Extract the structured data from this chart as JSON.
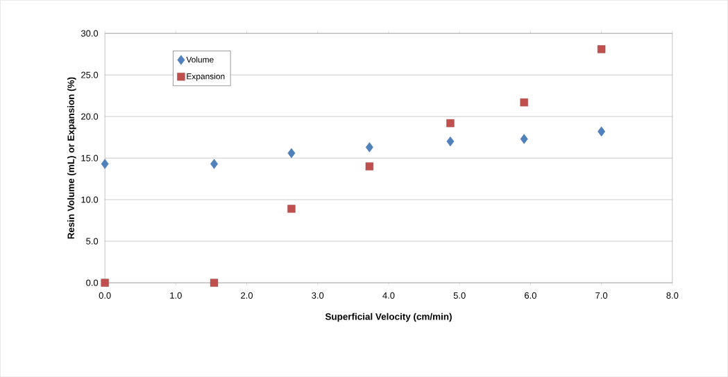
{
  "chart_data": {
    "type": "scatter",
    "xlabel": "Superficial Velocity (cm/min)",
    "ylabel": "Resin Volume (mL) or Expansion (%)",
    "x": [
      0.0,
      1.54,
      2.63,
      3.73,
      4.87,
      5.91,
      7.0
    ],
    "series": [
      {
        "name": "Volume",
        "color": "#4f81bd",
        "marker": "diamond",
        "values": [
          14.3,
          14.3,
          15.6,
          16.3,
          17.0,
          17.3,
          18.2
        ]
      },
      {
        "name": "Expansion",
        "color": "#c0504d",
        "marker": "square",
        "values": [
          0.0,
          0.0,
          8.9,
          14.0,
          19.2,
          21.7,
          28.1
        ]
      }
    ],
    "xlim": [
      0,
      8
    ],
    "ylim": [
      0,
      30
    ],
    "xticks": [
      {
        "value": 0,
        "label": "0.0"
      },
      {
        "value": 1,
        "label": "1.0"
      },
      {
        "value": 2,
        "label": "2.0"
      },
      {
        "value": 3,
        "label": "3.0"
      },
      {
        "value": 4,
        "label": "4.0"
      },
      {
        "value": 5,
        "label": "5.0"
      },
      {
        "value": 6,
        "label": "6.0"
      },
      {
        "value": 7,
        "label": "7.0"
      },
      {
        "value": 8,
        "label": "8.0"
      }
    ],
    "yticks": [
      {
        "value": 0,
        "label": "0.0"
      },
      {
        "value": 5,
        "label": "5.0"
      },
      {
        "value": 10,
        "label": "10.0"
      },
      {
        "value": 15,
        "label": "15.0"
      },
      {
        "value": 20,
        "label": "20.0"
      },
      {
        "value": 25,
        "label": "25.0"
      },
      {
        "value": 30,
        "label": "30.0"
      }
    ],
    "grid": "y",
    "legend": "top left"
  }
}
